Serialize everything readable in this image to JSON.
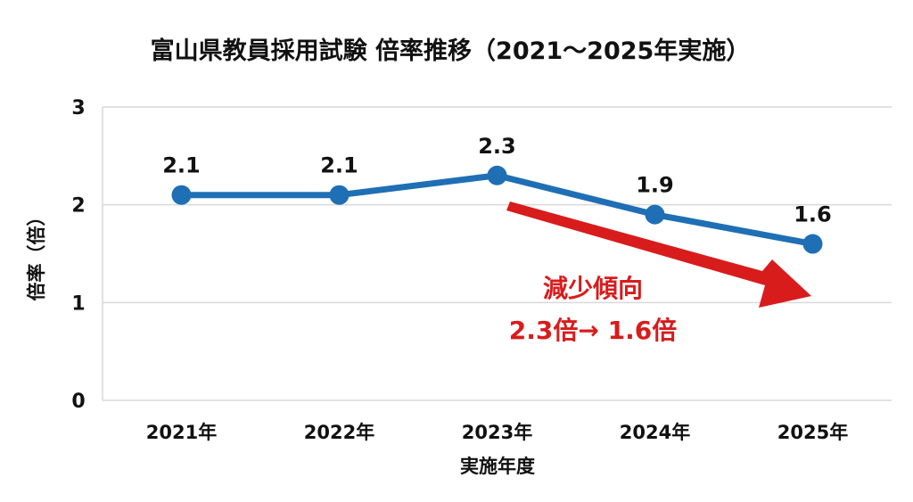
{
  "chart_data": {
    "type": "line",
    "title": "富山県教員採用試験 倍率推移（2021〜2025年実施）",
    "xlabel": "実施年度",
    "ylabel": "倍率（倍）",
    "categories": [
      "2021年",
      "2022年",
      "2023年",
      "2024年",
      "2025年"
    ],
    "values": [
      2.1,
      2.1,
      2.3,
      1.9,
      1.6
    ],
    "data_labels": [
      "2.1",
      "2.1",
      "2.3",
      "1.9",
      "1.6"
    ],
    "ylim": [
      0,
      3
    ],
    "yticks": [
      "0",
      "1",
      "2",
      "3"
    ],
    "grid": true,
    "line_color": "#1f6fb5",
    "annotation": {
      "line1": "減少傾向",
      "line2": "2.3倍→ 1.6倍",
      "color": "#d81c1c",
      "arrow": "down-right"
    }
  }
}
